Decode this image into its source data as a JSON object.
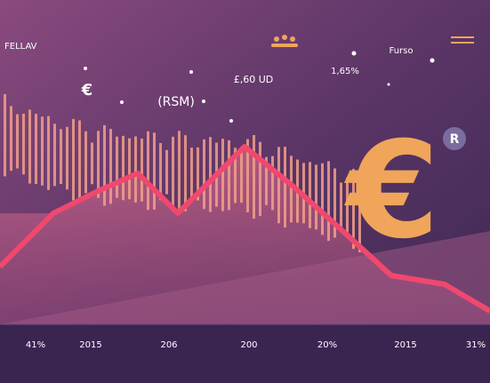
{
  "header": {
    "brand": "FELLAV",
    "symbol": "€",
    "tag": "(RSM)",
    "price": "£,60 UD",
    "rate": "1,65%",
    "note": "Furso",
    "badge": "R",
    "big_symbol": "€"
  },
  "axis": {
    "labels": [
      "41%",
      "2015",
      "206",
      "200",
      "20%",
      "2015",
      "31%"
    ]
  }
}
